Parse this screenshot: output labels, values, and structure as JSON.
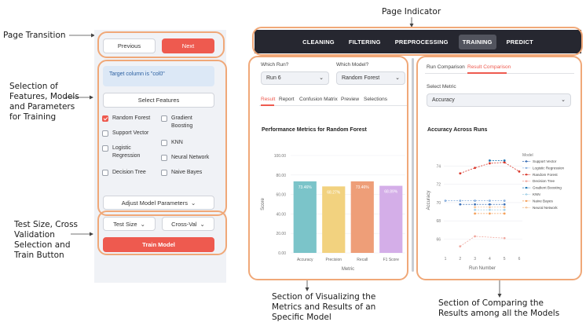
{
  "annotations": {
    "page_indicator": "Page Indicator",
    "page_transition": "Page Transition",
    "selection": [
      "Selection of",
      "Features, Models",
      "and Parameters",
      "for Training"
    ],
    "test_size": [
      "Test Size, Cross",
      "Validation",
      "Selection and",
      "Train Button"
    ],
    "visualizing": [
      "Section of Visualizing the",
      "Metrics and Results of an",
      "Specific Model"
    ],
    "comparing": [
      "Section of Comparing the",
      "Results among all the Models"
    ]
  },
  "sidebar": {
    "previous_label": "Previous",
    "next_label": "Next",
    "target_info": "Target column is \"col0\"",
    "select_features_label": "Select Features",
    "models": [
      {
        "label": "Random Forest",
        "checked": true
      },
      {
        "label": "Support Vector",
        "checked": false
      },
      {
        "label": "Logistic Regression",
        "checked": false
      },
      {
        "label": "Decision Tree",
        "checked": false
      },
      {
        "label": "Gradient Boosting",
        "checked": false
      },
      {
        "label": "KNN",
        "checked": false
      },
      {
        "label": "Neural Network",
        "checked": false
      },
      {
        "label": "Naive Bayes",
        "checked": false
      }
    ],
    "adjust_label": "Adjust Model Parameters",
    "test_size_label": "Test Size",
    "cross_val_label": "Cross-Val",
    "train_label": "Train Model"
  },
  "nav": {
    "items": [
      "CLEANING",
      "FILTERING",
      "PREPROCESSING",
      "TRAINING",
      "PREDICT"
    ],
    "active": "TRAINING"
  },
  "results_panel": {
    "which_run_label": "Which Run?",
    "which_run_value": "Run 6",
    "which_model_label": "Which Model?",
    "which_model_value": "Random Forest",
    "tabs": [
      "Result",
      "Report",
      "Confusion Matrix",
      "Preview",
      "Selections"
    ],
    "active_tab": "Result",
    "chart_title": "Performance Metrics for Random Forest"
  },
  "comparison_panel": {
    "tabs": [
      "Run Comparison",
      "Result Comparison"
    ],
    "active_tab": "Result Comparison",
    "select_metric_label": "Select Metric",
    "select_metric_value": "Accuracy",
    "chart_title": "Accuracy Across Runs"
  },
  "chart_data": [
    {
      "type": "bar",
      "title": "Performance Metrics for Random Forest",
      "categories": [
        "Accuracy",
        "Precision",
        "Recall",
        "F1 Score"
      ],
      "values": [
        73.46,
        68.27,
        73.46,
        68.89
      ],
      "value_labels": [
        "73.46%",
        "68.27%",
        "73.46%",
        "68.89%"
      ],
      "colors": [
        "#7bc4c9",
        "#f2d27f",
        "#ee9e78",
        "#d4aee8"
      ],
      "xlabel": "Metric",
      "ylabel": "Score",
      "ylim": [
        0,
        100
      ],
      "yticks": [
        0,
        20,
        40,
        60,
        80,
        100
      ],
      "ytick_labels": [
        "0.00",
        "20.00",
        "40.00",
        "60.00",
        "80.00",
        "100.00"
      ]
    },
    {
      "type": "line",
      "title": "Accuracy Across Runs",
      "xlabel": "Run Number",
      "ylabel": "Accuracy",
      "x_ticks": [
        1,
        2,
        3,
        4,
        5,
        6
      ],
      "ylim": [
        65,
        75.5
      ],
      "yticks": [
        66,
        68,
        70,
        72,
        74
      ],
      "legend_title": "Model",
      "series": [
        {
          "name": "Support Vector",
          "color": "#3b6fb6",
          "x": [
            2,
            3,
            4,
            5
          ],
          "y": [
            69.8,
            69.8,
            69.8,
            69.8
          ]
        },
        {
          "name": "Logistic Regression",
          "color": "#8fb4e0",
          "x": [
            1,
            2,
            3,
            4,
            5
          ],
          "y": [
            70.2,
            70.2,
            70.2,
            70.2,
            70.2
          ]
        },
        {
          "name": "Random Forest",
          "color": "#d9372b",
          "x": [
            2,
            3,
            4,
            5,
            6
          ],
          "y": [
            73.2,
            73.8,
            74.3,
            74.4,
            73.4
          ]
        },
        {
          "name": "Decision Tree",
          "color": "#f0a9a0",
          "x": [
            2,
            3,
            5
          ],
          "y": [
            65.2,
            66.3,
            66.1
          ]
        },
        {
          "name": "Gradient Boosting",
          "color": "#1f77b4",
          "x": [
            4,
            5
          ],
          "y": [
            74.6,
            74.6
          ]
        },
        {
          "name": "KNN",
          "color": "#a8d3e8",
          "x": [
            3,
            4,
            5
          ],
          "y": [
            69.2,
            69.2,
            69.2
          ]
        },
        {
          "name": "Naive Bayes",
          "color": "#f5a05a",
          "x": [
            3,
            4,
            5
          ],
          "y": [
            68.8,
            68.8,
            68.8
          ]
        },
        {
          "name": "Neural Network",
          "color": "#f4c49a",
          "x": [
            3,
            4,
            5
          ],
          "y": [
            69.5,
            69.5,
            69.5
          ]
        }
      ]
    }
  ]
}
